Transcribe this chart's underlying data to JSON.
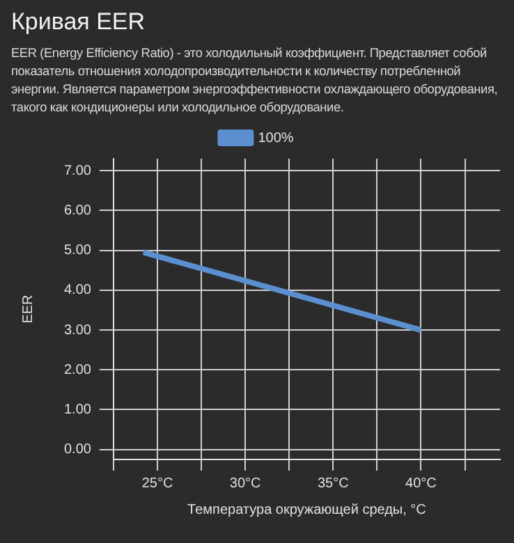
{
  "chart_data": {
    "type": "line",
    "title": "Кривая EER",
    "subtitle": "EER (Energy Efficiency Ratio) - это холодильный коэффициент. Представляет собой показатель отношения холодопроизводительности к количеству потребленной энергии. Является параметром энергоэффективности охлаждающего оборудования, такого как кондиционеры или холодильное оборудование.",
    "xlabel": "Температура окружающей среды, °C",
    "ylabel": "EER",
    "x": [
      24.2,
      40
    ],
    "series": [
      {
        "name": "100%",
        "color": "#5b8fd0",
        "values": [
          4.95,
          3.0
        ]
      }
    ],
    "xlim": [
      22.5,
      44.5
    ],
    "xticks": [
      {
        "value": 22.5,
        "label": null
      },
      "25°C",
      {
        "value": 27.5,
        "label": null
      },
      {
        "value": 30,
        "label": "30°C"
      },
      {
        "value": 32.5,
        "label": null
      },
      {
        "value": 35,
        "label": "35°C"
      },
      {
        "value": 37.5,
        "label": null
      },
      {
        "value": 40,
        "label": "40°C"
      },
      {
        "value": 42.5,
        "label": null
      }
    ],
    "ylim": [
      -0.25,
      7.3
    ],
    "yticks": [
      {
        "value": 0,
        "label": "0.00"
      },
      {
        "value": 1,
        "label": "1.00"
      },
      {
        "value": 2,
        "label": "2.00"
      },
      {
        "value": 3,
        "label": "3.00"
      },
      {
        "value": 4,
        "label": "4.00"
      },
      {
        "value": 5,
        "label": "5.00"
      },
      {
        "value": 6,
        "label": "6.00"
      },
      {
        "value": 7,
        "label": "7.00"
      }
    ],
    "grid": true,
    "legend": "top",
    "marker": "none",
    "line_style": "solid"
  }
}
